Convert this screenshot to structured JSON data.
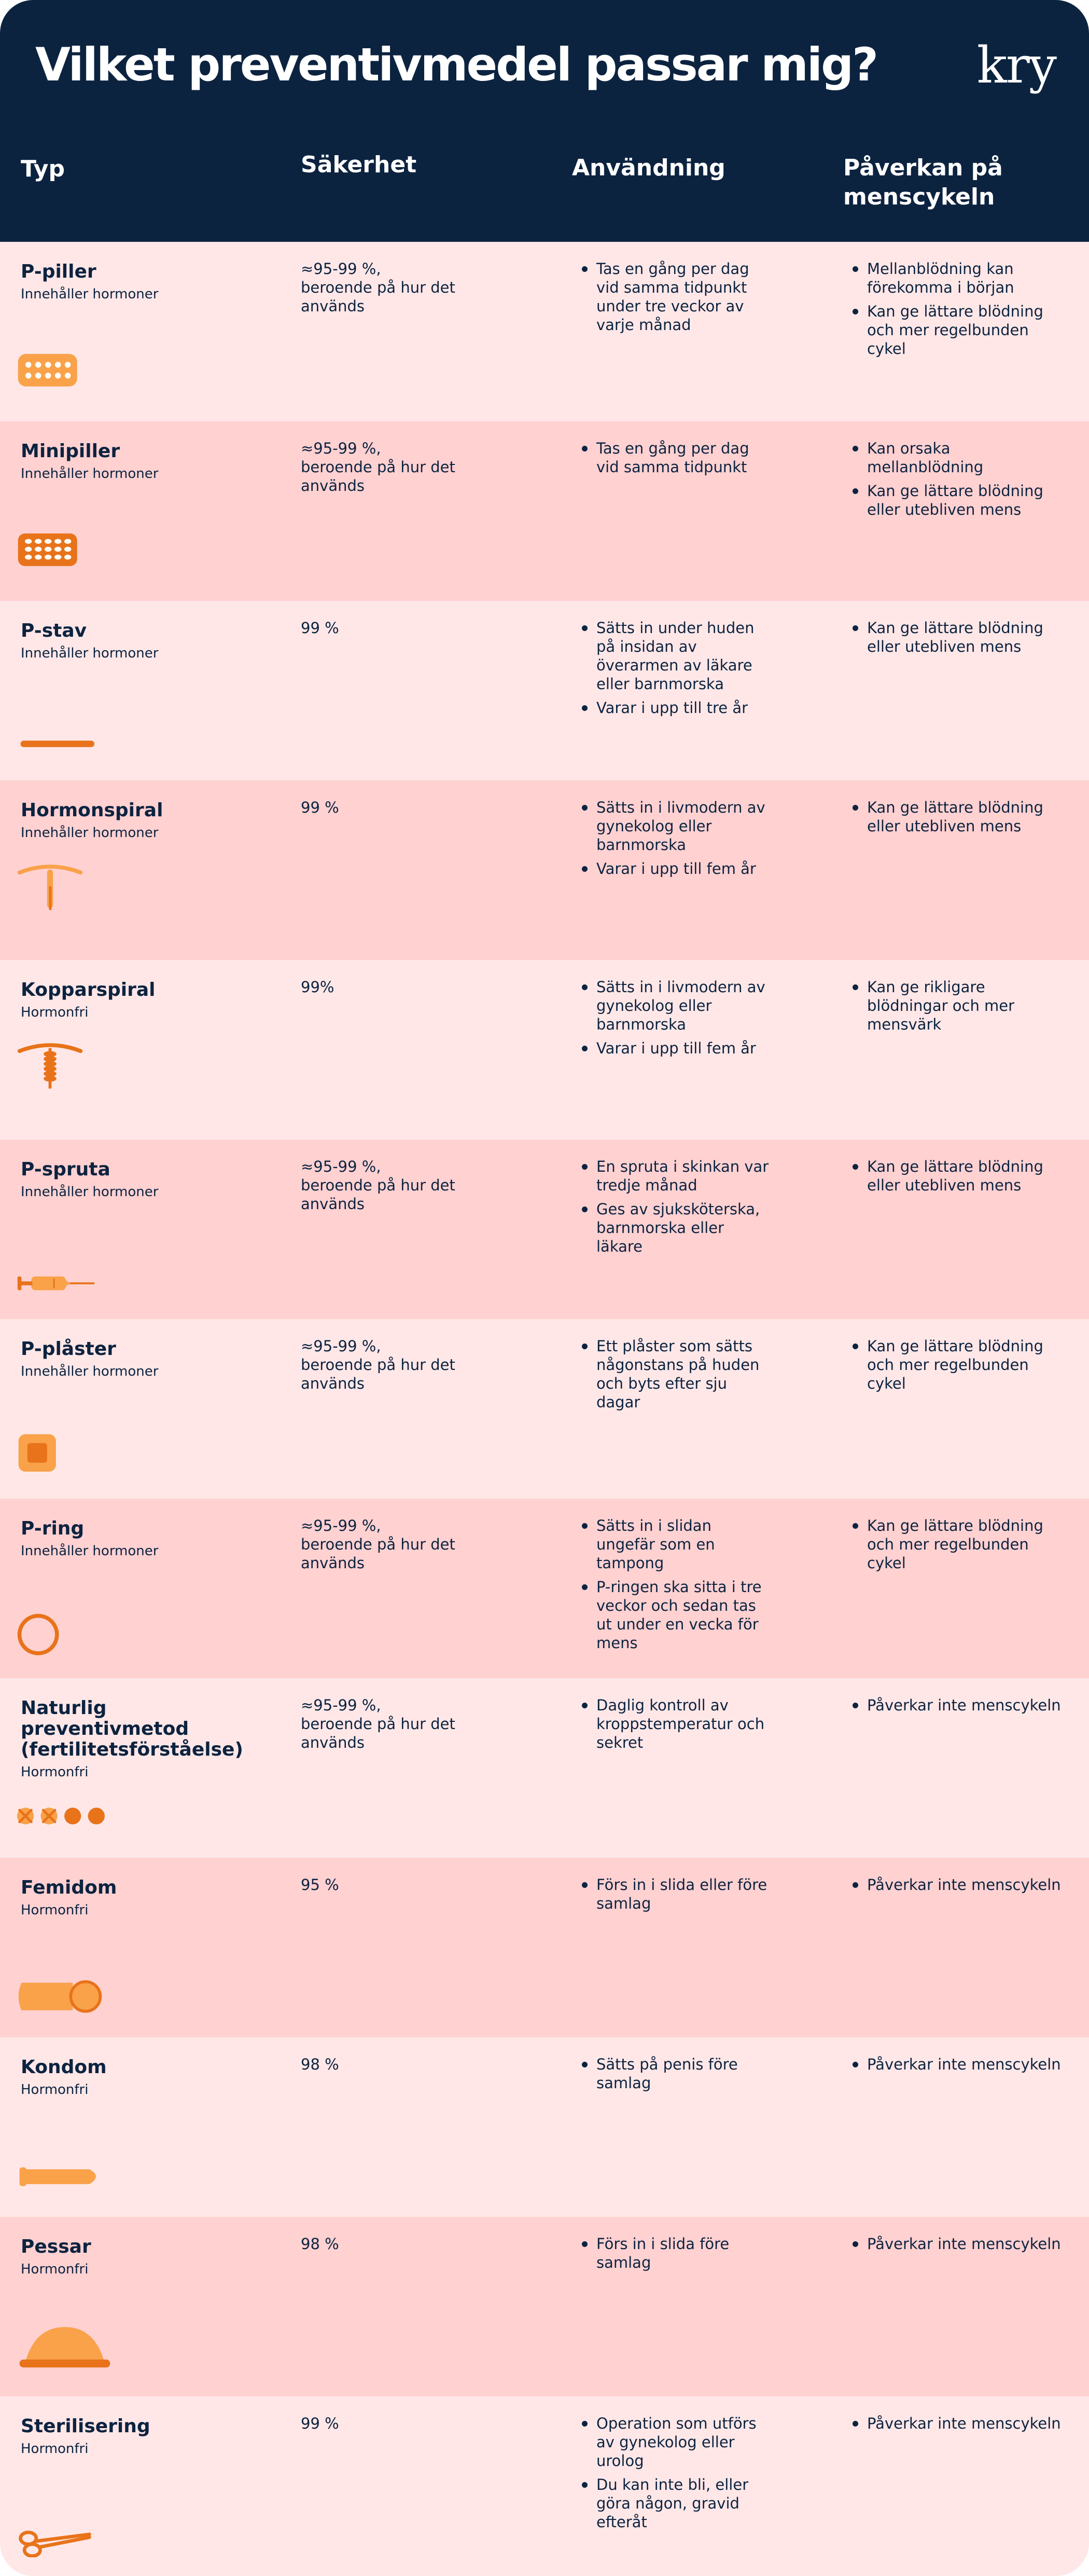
{
  "header": {
    "title": "Vilket preventivmedel passar mig?",
    "logo": "kry",
    "columns": {
      "type": "Typ",
      "safety": "Säkerhet",
      "usage": "Användning",
      "effect": "Påverkan på menscykeln"
    }
  },
  "colors": {
    "navy": "#0c2340",
    "row_light": "#ffe7e7",
    "row_dark": "#ffd1d1",
    "orange": "#e8731a",
    "light_orange": "#f9a24a"
  },
  "rows": [
    {
      "name": "P-piller",
      "hormone": "Innehåller hormoner",
      "safety": "≈95-99 %, beroende på hur det används",
      "usage": [
        "Tas en gång per dag vid samma tidpunkt under tre veckor av varje månad"
      ],
      "effect": [
        "Mellanblödning kan förekomma i början",
        "Kan ge lättare blödning och mer regelbunden cykel"
      ],
      "icon": "pill-pack-icon"
    },
    {
      "name": "Minipiller",
      "hormone": "Innehåller hormoner",
      "safety": "≈95-99 %, beroende på hur det används",
      "usage": [
        "Tas en gång per dag vid samma tidpunkt"
      ],
      "effect": [
        "Kan orsaka mellanblödning",
        "Kan ge lättare blödning eller utebliven mens"
      ],
      "icon": "minipill-pack-icon"
    },
    {
      "name": "P-stav",
      "hormone": "Innehåller hormoner",
      "safety": "99 %",
      "usage": [
        "Sätts in under huden på insidan av överarmen av läkare eller barnmorska",
        "Varar i upp till tre år"
      ],
      "effect": [
        "Kan ge lättare blödning eller utebliven mens"
      ],
      "icon": "implant-rod-icon"
    },
    {
      "name": "Hormonspiral",
      "hormone": "Innehåller hormoner",
      "safety": "99 %",
      "usage": [
        "Sätts in i livmodern av gynekolog eller barnmorska",
        "Varar i upp till fem år"
      ],
      "effect": [
        "Kan ge lättare blödning eller utebliven mens"
      ],
      "icon": "hormonal-iud-icon"
    },
    {
      "name": "Kopparspiral",
      "hormone": "Hormonfri",
      "safety": "99%",
      "usage": [
        "Sätts in i livmodern av gynekolog eller barnmorska",
        "Varar i upp till fem år"
      ],
      "effect": [
        "Kan ge rikligare blödningar och mer mensvärk"
      ],
      "icon": "copper-iud-icon"
    },
    {
      "name": "P-spruta",
      "hormone": "Innehåller hormoner",
      "safety": "≈95-99 %, beroende på hur det används",
      "usage": [
        "En spruta i skinkan var tredje månad",
        "Ges av sjuksköterska, barnmorska eller läkare"
      ],
      "effect": [
        "Kan ge lättare blödning eller utebliven mens"
      ],
      "icon": "syringe-icon"
    },
    {
      "name": "P-plåster",
      "hormone": "Innehåller hormoner",
      "safety": "≈95-99 %, beroende på hur det används",
      "usage": [
        "Ett plåster som sätts någonstans på huden och byts efter sju dagar"
      ],
      "effect": [
        "Kan ge lättare blödning och mer regelbunden cykel"
      ],
      "icon": "patch-icon"
    },
    {
      "name": "P-ring",
      "hormone": "Innehåller hormoner",
      "safety": "≈95-99 %, beroende på hur det används",
      "usage": [
        "Sätts in i slidan ungefär som en tampong",
        "P-ringen ska sitta i tre veckor och sedan tas ut under en vecka för mens"
      ],
      "effect": [
        "Kan ge lättare blödning och mer regelbunden cykel"
      ],
      "icon": "vaginal-ring-icon"
    },
    {
      "name": "Naturlig preventivmetod (fertilitetsförståelse)",
      "hormone": "Hormonfri",
      "safety": "≈95-99 %, beroende på hur det används",
      "usage": [
        "Daglig kontroll av kroppstemperatur och sekret"
      ],
      "effect": [
        "Påverkar inte menscykeln"
      ],
      "icon": "calendar-marks-icon"
    },
    {
      "name": "Femidom",
      "hormone": "Hormonfri",
      "safety": "95 %",
      "usage": [
        "Förs in i slida eller före samlag"
      ],
      "effect": [
        "Påverkar inte menscykeln"
      ],
      "icon": "femidom-icon"
    },
    {
      "name": "Kondom",
      "hormone": "Hormonfri",
      "safety": "98 %",
      "usage": [
        "Sätts på penis före samlag"
      ],
      "effect": [
        "Påverkar inte menscykeln"
      ],
      "icon": "condom-icon"
    },
    {
      "name": "Pessar",
      "hormone": "Hormonfri",
      "safety": "98 %",
      "usage": [
        "Förs in i slida före samlag"
      ],
      "effect": [
        "Påverkar inte menscykeln"
      ],
      "icon": "diaphragm-icon"
    },
    {
      "name": "Sterilisering",
      "hormone": "Hormonfri",
      "safety": "99 %",
      "usage": [
        "Operation som utförs av gynekolog eller urolog",
        "Du kan inte bli, eller göra någon, gravid efteråt"
      ],
      "effect": [
        "Påverkar inte menscykeln"
      ],
      "icon": "scissors-icon"
    }
  ]
}
